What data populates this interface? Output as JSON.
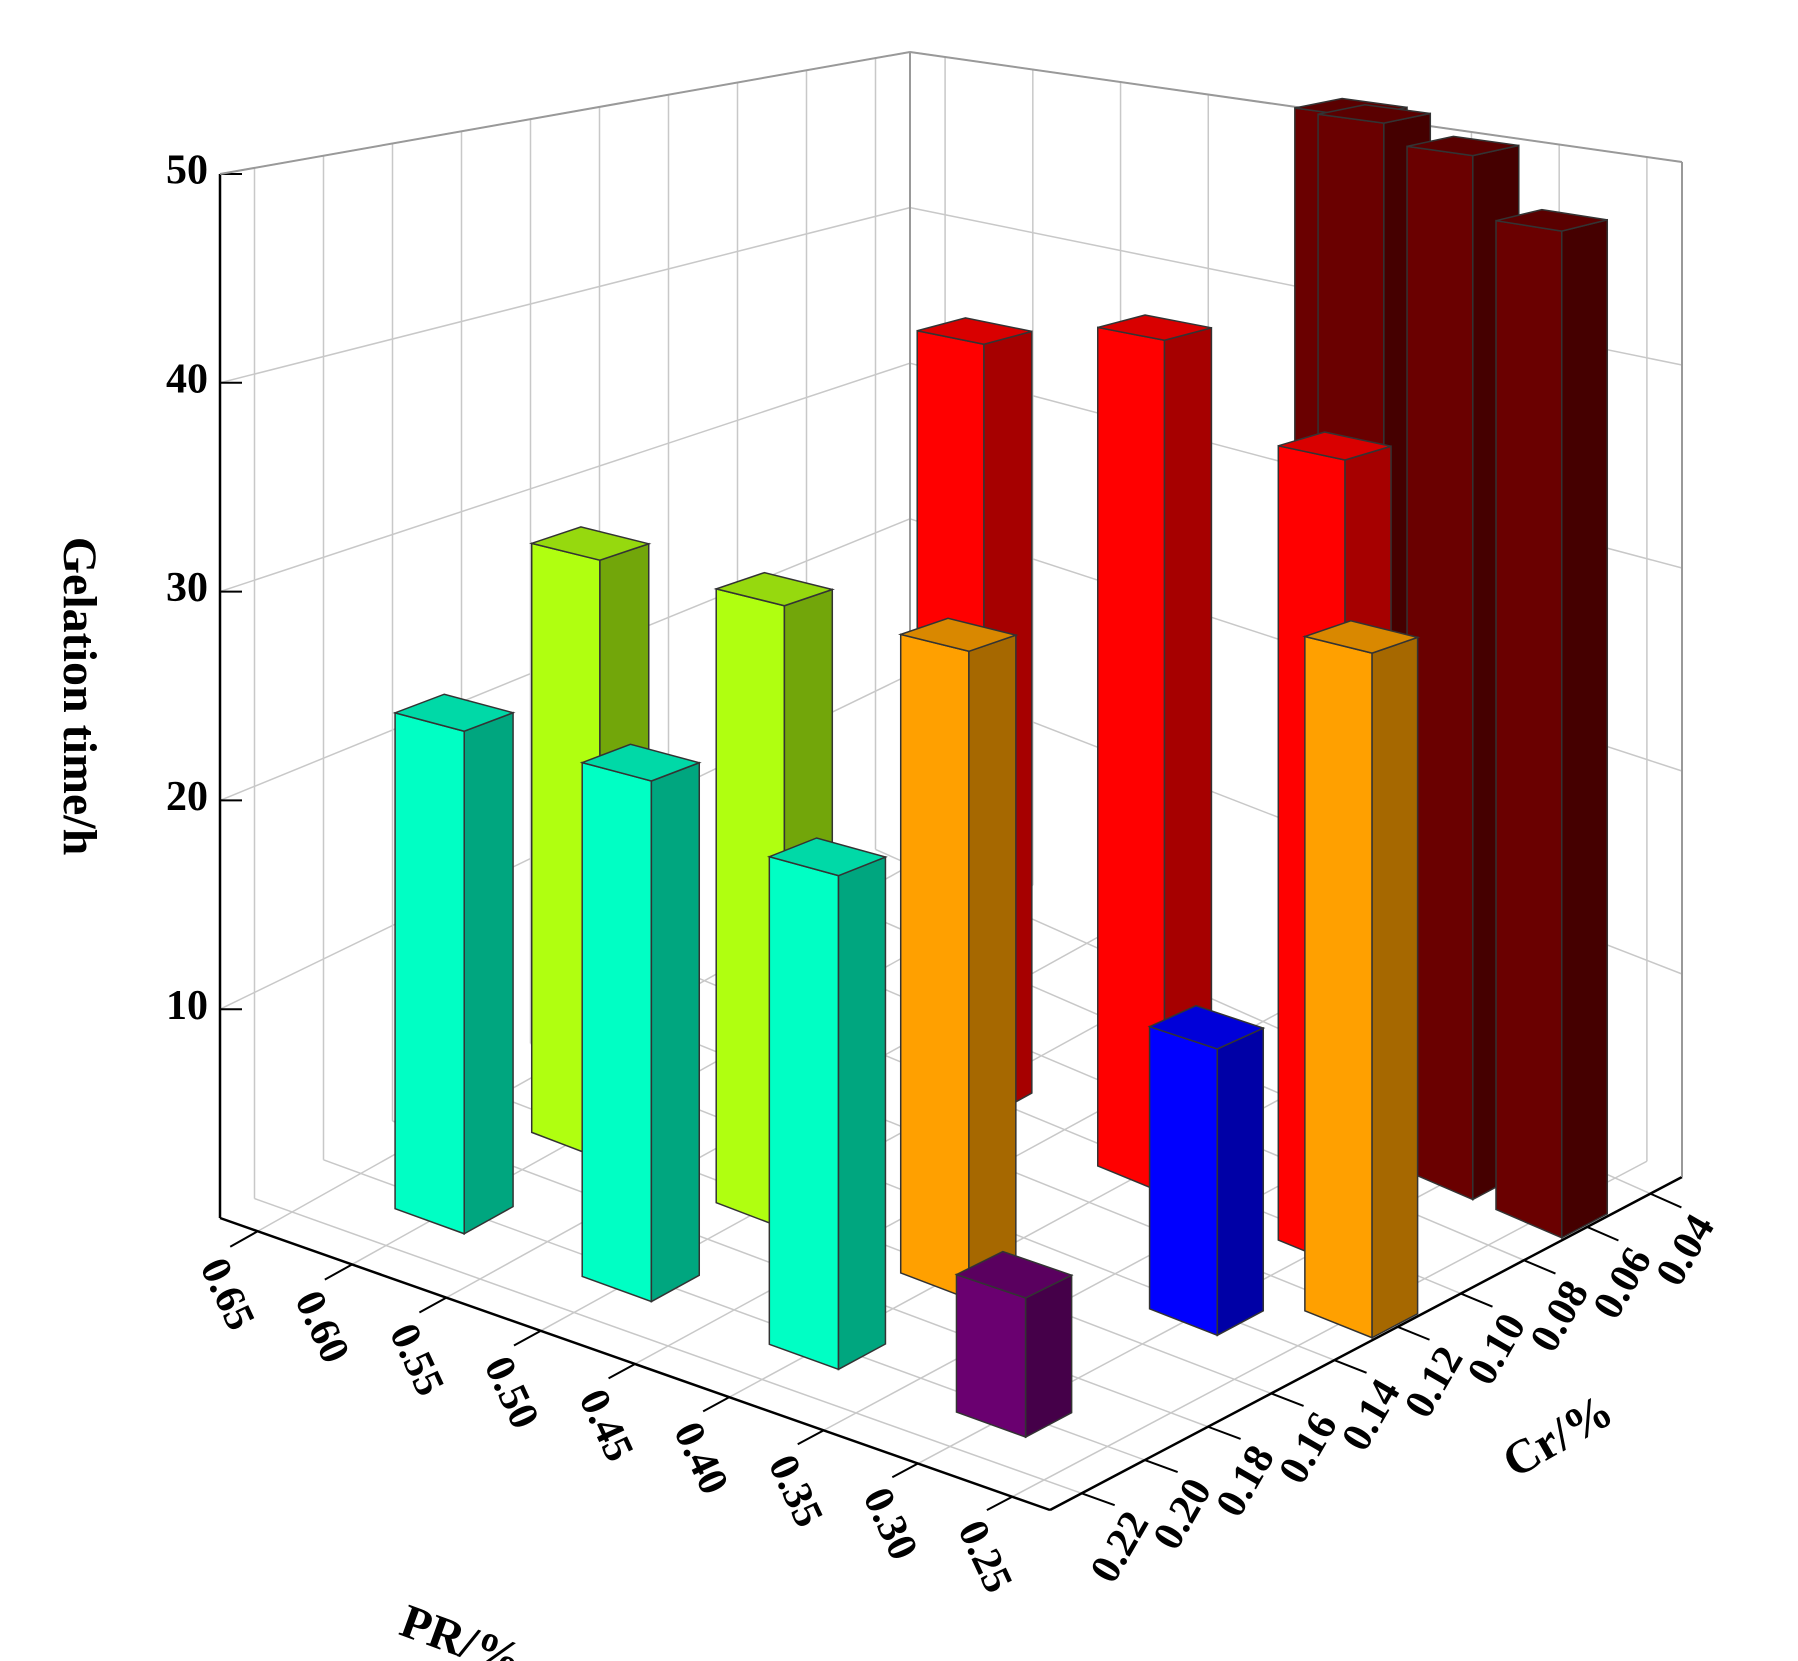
{
  "chart_data": {
    "type": "bar3d",
    "xlabel": "PR/%",
    "ylabel": "Cr/%",
    "zlabel": "Gelation time/h",
    "xlim": [
      0.23,
      0.67
    ],
    "xticks": [
      0.65,
      {
        "value": 0.6,
        "label": "0.60"
      },
      0.55,
      {
        "value": 0.5,
        "label": "0.50"
      },
      0.45,
      {
        "value": 0.4,
        "label": "0.40"
      },
      0.35,
      {
        "value": 0.3,
        "label": "0.30"
      },
      0.25
    ],
    "ylim": [
      0.03,
      0.23
    ],
    "yticks": [
      0.04,
      0.06,
      0.08,
      {
        "value": 0.1,
        "label": "0.10"
      },
      0.12,
      0.14,
      0.16,
      0.18,
      {
        "value": 0.2,
        "label": "0.20"
      },
      0.22
    ],
    "zlim": [
      0,
      50
    ],
    "zticks": [
      10,
      20,
      30,
      40,
      50
    ],
    "grid": true,
    "series": [
      {
        "color": "#6a0000",
        "x": [
          0.4,
          0.35,
          0.3,
          0.25
        ],
        "y": [
          0.04,
          0.06,
          0.06,
          0.06
        ],
        "values": [
          51,
          52,
          51,
          48
        ]
      },
      {
        "color": "#ff0000",
        "x": [
          0.5,
          0.4,
          0.3
        ],
        "y": [
          0.1,
          0.1,
          0.1
        ],
        "values": [
          40,
          42,
          38
        ]
      },
      {
        "color": "#b0ff10",
        "x": [
          0.6,
          0.5
        ],
        "y": [
          0.16,
          0.16
        ],
        "values": [
          30,
          30
        ]
      },
      {
        "color": "#ffa000",
        "x": [
          0.4,
          0.25
        ],
        "y": [
          0.16,
          0.12
        ],
        "values": [
          30,
          31
        ]
      },
      {
        "color": "#0000ff",
        "x": [
          0.3
        ],
        "y": [
          0.14
        ],
        "values": [
          13
        ]
      },
      {
        "color": "#00ffc4",
        "x": [
          0.6,
          0.5,
          0.4
        ],
        "y": [
          0.2,
          0.2,
          0.2
        ],
        "values": [
          24,
          24,
          22
        ]
      },
      {
        "color": "#6a0070",
        "x": [
          0.3
        ],
        "y": [
          0.2
        ],
        "values": [
          6
        ]
      }
    ]
  }
}
